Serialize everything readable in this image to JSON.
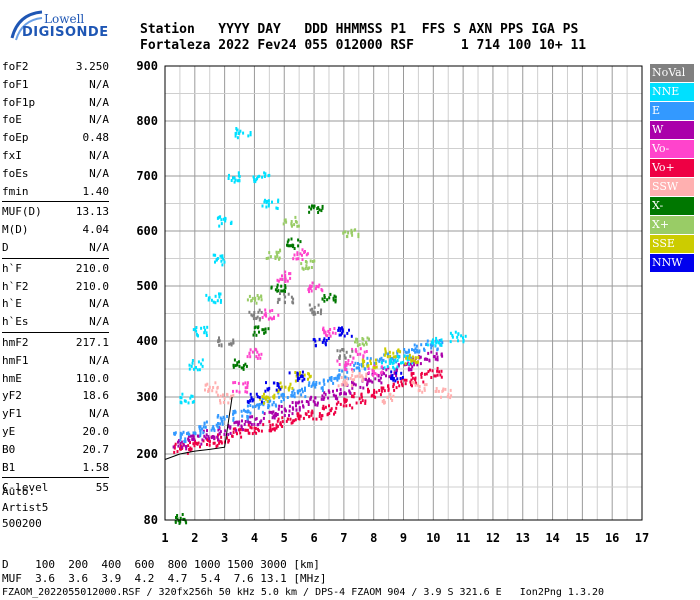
{
  "logo": {
    "line1": "Lowell",
    "line2": "DIGISONDE"
  },
  "header": {
    "row1": "Station   YYYY DAY   DDD HHMMSS P1  FFS S AXN PPS IGA PS",
    "row2": "Fortaleza 2022 Fev24 055 012000 RSF      1 714 100 10+ 11"
  },
  "params": [
    [
      {
        "k": "foF2",
        "v": "3.250"
      },
      {
        "k": "foF1",
        "v": "N/A"
      },
      {
        "k": "foF1p",
        "v": "N/A"
      },
      {
        "k": "foE",
        "v": "N/A"
      },
      {
        "k": "foEp",
        "v": "0.48"
      },
      {
        "k": "fxI",
        "v": "N/A"
      },
      {
        "k": "foEs",
        "v": "N/A"
      },
      {
        "k": "fmin",
        "v": "1.40"
      }
    ],
    [
      {
        "k": "MUF(D)",
        "v": "13.13"
      },
      {
        "k": "M(D)",
        "v": "4.04"
      },
      {
        "k": "D",
        "v": "N/A"
      }
    ],
    [
      {
        "k": "h`F",
        "v": "210.0"
      },
      {
        "k": "h`F2",
        "v": "210.0"
      },
      {
        "k": "h`E",
        "v": "N/A"
      },
      {
        "k": "h`Es",
        "v": "N/A"
      }
    ],
    [
      {
        "k": "hmF2",
        "v": "217.1"
      },
      {
        "k": "hmF1",
        "v": "N/A"
      },
      {
        "k": "hmE",
        "v": "110.0"
      },
      {
        "k": "yF2",
        "v": "18.6"
      },
      {
        "k": "yF1",
        "v": "N/A"
      },
      {
        "k": "yE",
        "v": "20.0"
      },
      {
        "k": "B0",
        "v": "20.7"
      },
      {
        "k": "B1",
        "v": "1.58"
      }
    ],
    [
      {
        "k": "C-level",
        "v": "55"
      }
    ]
  ],
  "autoscale": {
    "line1": "Auto:",
    "line2": "Artist5",
    "line3": "500200"
  },
  "legend": [
    {
      "label": "NoVal",
      "color": "#808080"
    },
    {
      "label": "NNE",
      "color": "#00e0ff"
    },
    {
      "label": "E",
      "color": "#3399ff"
    },
    {
      "label": "W",
      "color": "#aa00aa"
    },
    {
      "label": "Vo-",
      "color": "#ff44cc"
    },
    {
      "label": "Vo+",
      "color": "#ee0044"
    },
    {
      "label": "SSW",
      "color": "#ffb0b0"
    },
    {
      "label": "X-",
      "color": "#007700"
    },
    {
      "label": "X+",
      "color": "#99cc66"
    },
    {
      "label": "SSE",
      "color": "#cccc00"
    },
    {
      "label": "NNW",
      "color": "#0000ee"
    }
  ],
  "chart_data": {
    "type": "scatter",
    "xlabel": "",
    "ylabel": "",
    "xlim": [
      1,
      17
    ],
    "ylim": [
      80,
      900
    ],
    "xticks": [
      "1",
      "2",
      "3",
      "4",
      "5",
      "6",
      "7",
      "8",
      "9",
      "10",
      "11",
      "12",
      "13",
      "14",
      "15",
      "16",
      "17"
    ],
    "yticks": [
      "80",
      "200",
      "300",
      "400",
      "500",
      "600",
      "700",
      "800",
      "900"
    ],
    "grid": true,
    "echo_regions": [
      {
        "name": "Vo+",
        "points": [
          [
            1.5,
            212
          ],
          [
            2.0,
            218
          ],
          [
            2.5,
            224
          ],
          [
            3.0,
            230
          ],
          [
            3.5,
            238
          ],
          [
            4.0,
            246
          ],
          [
            4.5,
            252
          ],
          [
            5.0,
            258
          ],
          [
            5.5,
            265
          ],
          [
            6.0,
            272
          ],
          [
            6.5,
            280
          ],
          [
            7.0,
            290
          ],
          [
            7.5,
            300
          ],
          [
            8.0,
            310
          ],
          [
            8.5,
            318
          ],
          [
            9.0,
            328
          ],
          [
            9.5,
            336
          ],
          [
            10.0,
            345
          ]
        ]
      },
      {
        "name": "W",
        "points": [
          [
            1.5,
            220
          ],
          [
            2.0,
            228
          ],
          [
            2.5,
            236
          ],
          [
            3.0,
            244
          ],
          [
            3.5,
            252
          ],
          [
            4.0,
            262
          ],
          [
            4.5,
            270
          ],
          [
            5.0,
            278
          ],
          [
            5.5,
            288
          ],
          [
            6.0,
            296
          ],
          [
            6.5,
            306
          ],
          [
            7.0,
            316
          ],
          [
            7.5,
            326
          ],
          [
            8.0,
            336
          ],
          [
            8.5,
            346
          ],
          [
            9.0,
            356
          ],
          [
            9.5,
            366
          ],
          [
            10.0,
            375
          ]
        ]
      },
      {
        "name": "E",
        "points": [
          [
            1.5,
            232
          ],
          [
            2.0,
            242
          ],
          [
            2.5,
            252
          ],
          [
            3.0,
            262
          ],
          [
            3.5,
            272
          ],
          [
            4.0,
            282
          ],
          [
            4.5,
            292
          ],
          [
            5.0,
            302
          ],
          [
            5.5,
            312
          ],
          [
            6.0,
            322
          ],
          [
            6.5,
            332
          ],
          [
            7.0,
            344
          ],
          [
            7.5,
            354
          ],
          [
            8.0,
            364
          ],
          [
            8.5,
            372
          ],
          [
            9.0,
            380
          ],
          [
            9.5,
            388
          ],
          [
            10.0,
            395
          ]
        ]
      },
      {
        "name": "NNE",
        "points": [
          [
            1.7,
            300
          ],
          [
            2.0,
            360
          ],
          [
            2.2,
            420
          ],
          [
            2.6,
            480
          ],
          [
            2.8,
            550
          ],
          [
            3.0,
            620
          ],
          [
            3.3,
            700
          ],
          [
            3.6,
            780
          ],
          [
            4.2,
            700
          ],
          [
            4.5,
            650
          ],
          [
            8.5,
            360
          ],
          [
            9.0,
            370
          ],
          [
            10.0,
            400
          ],
          [
            10.8,
            410
          ]
        ]
      },
      {
        "name": "Vo-",
        "points": [
          [
            3.5,
            320
          ],
          [
            4.0,
            380
          ],
          [
            4.5,
            450
          ],
          [
            5.0,
            520
          ],
          [
            5.5,
            560
          ],
          [
            6.0,
            500
          ],
          [
            6.5,
            420
          ],
          [
            7.0,
            360
          ],
          [
            7.5,
            380
          ],
          [
            8.0,
            350
          ]
        ]
      },
      {
        "name": "SSW",
        "points": [
          [
            2.5,
            320
          ],
          [
            3.0,
            300
          ],
          [
            7.0,
            330
          ],
          [
            7.5,
            340
          ],
          [
            8.5,
            300
          ],
          [
            9.5,
            320
          ],
          [
            10.3,
            310
          ]
        ]
      },
      {
        "name": "X-",
        "points": [
          [
            3.5,
            360
          ],
          [
            4.2,
            420
          ],
          [
            4.8,
            500
          ],
          [
            5.3,
            580
          ],
          [
            6.0,
            640
          ],
          [
            6.5,
            480
          ],
          [
            1.5,
            85
          ]
        ]
      },
      {
        "name": "X+",
        "points": [
          [
            4.0,
            480
          ],
          [
            4.6,
            560
          ],
          [
            5.2,
            620
          ],
          [
            5.8,
            540
          ],
          [
            7.2,
            600
          ],
          [
            7.6,
            400
          ]
        ]
      },
      {
        "name": "SSE",
        "points": [
          [
            4.4,
            300
          ],
          [
            5.0,
            320
          ],
          [
            5.6,
            340
          ],
          [
            7.8,
            360
          ],
          [
            8.6,
            380
          ],
          [
            9.2,
            370
          ]
        ]
      },
      {
        "name": "NNW",
        "points": [
          [
            4.0,
            300
          ],
          [
            4.6,
            320
          ],
          [
            5.4,
            340
          ],
          [
            6.2,
            400
          ],
          [
            7.0,
            420
          ],
          [
            8.8,
            340
          ]
        ]
      },
      {
        "name": "NoVal",
        "points": [
          [
            3.0,
            400
          ],
          [
            4.0,
            450
          ],
          [
            5.0,
            480
          ],
          [
            6.0,
            460
          ],
          [
            7.0,
            380
          ]
        ]
      }
    ],
    "trace_curve": [
      [
        1.0,
        190
      ],
      [
        1.5,
        200
      ],
      [
        2.0,
        205
      ],
      [
        2.5,
        208
      ],
      [
        3.0,
        212
      ],
      [
        3.25,
        300
      ]
    ]
  },
  "footer": {
    "row1": "D    100  200  400  600  800 1000 1500 3000 [km]",
    "row2": "MUF  3.6  3.6  3.9  4.2  4.7  5.4  7.6 13.1 [MHz]",
    "row3": "FZAOM_2022055012000.RSF / 320fx256h 50 kHz 5.0 km / DPS-4 FZAOM 904 / 3.9 S 321.6 E   Ion2Png 1.3.20"
  }
}
